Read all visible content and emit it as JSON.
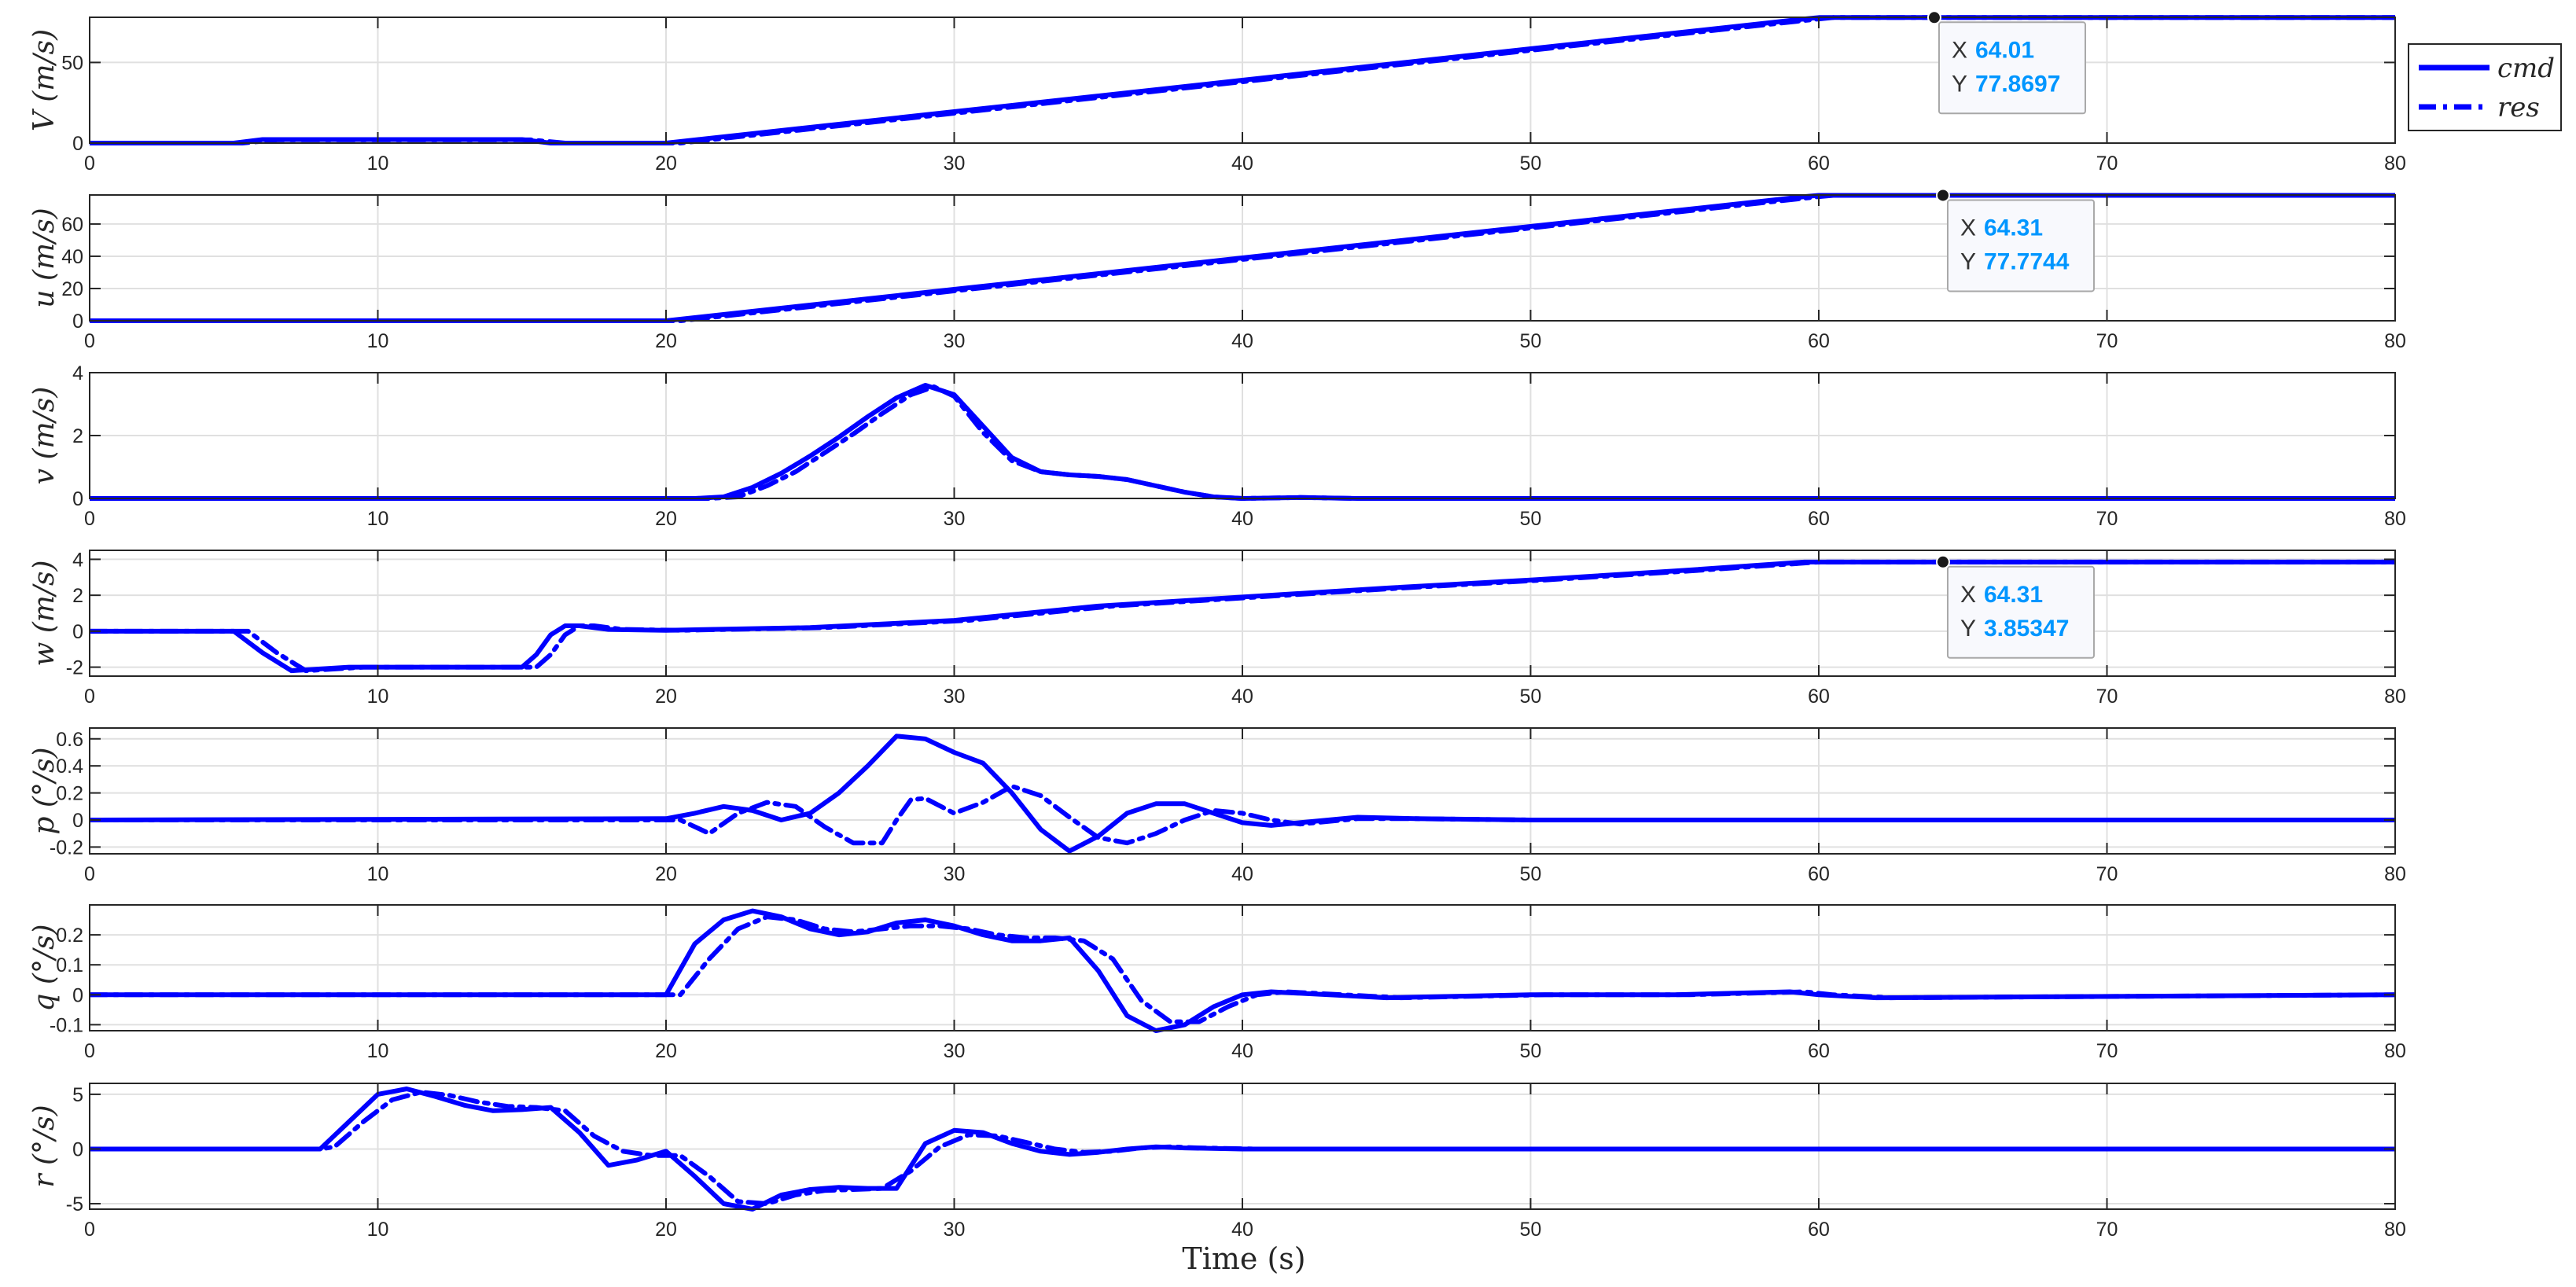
{
  "colors": {
    "series": "#0000ff",
    "axis": "#262626",
    "grid": "#e0e0e0",
    "tip_value": "#0096ff"
  },
  "chart_data": {
    "type": "line",
    "xlabel": "Time (s)",
    "xlim": [
      0,
      80
    ],
    "xticks": [
      0,
      10,
      20,
      30,
      40,
      50,
      60,
      70,
      80
    ],
    "legend": {
      "placement": "top-right",
      "entries": [
        {
          "name": "cmd",
          "style": "solid"
        },
        {
          "name": "res",
          "style": "dash-dot"
        }
      ]
    },
    "grid": true,
    "panels": [
      {
        "ylabel": "V (m/s)",
        "ylim": [
          0,
          78
        ],
        "yticks": [
          0,
          50
        ],
        "series": [
          {
            "name": "cmd",
            "x": [
              0,
              5,
              6,
              15,
              16,
              20,
              30,
              40,
              50,
              59.5,
              60,
              80
            ],
            "y": [
              0,
              0,
              2.2,
              2.2,
              0,
              0,
              19.5,
              39.0,
              58.5,
              77.0,
              77.87,
              77.87
            ]
          },
          {
            "name": "res",
            "x": [
              0,
              5.3,
              6.5,
              15.3,
              16.5,
              20.5,
              30.5,
              40.5,
              50.5,
              60,
              60.5,
              80
            ],
            "y": [
              0,
              0,
              2.0,
              2.0,
              0,
              0,
              19.5,
              39.0,
              58.5,
              77.0,
              77.87,
              77.87
            ]
          }
        ],
        "datatip": {
          "x": 64.01,
          "y": 77.8697,
          "x_label": "X",
          "y_label": "Y",
          "x_text": "64.01",
          "y_text": "77.8697"
        }
      },
      {
        "ylabel": "u (m/s)",
        "ylim": [
          0,
          78
        ],
        "yticks": [
          0,
          20,
          40,
          60
        ],
        "series": [
          {
            "name": "cmd",
            "x": [
              0,
              20,
              30,
              40,
              50,
              59.5,
              60,
              80
            ],
            "y": [
              0,
              0,
              19.5,
              39.0,
              58.5,
              77.0,
              77.77,
              77.77
            ]
          },
          {
            "name": "res",
            "x": [
              0,
              20.5,
              30.5,
              40.5,
              50.5,
              60,
              60.5,
              80
            ],
            "y": [
              0,
              0,
              19.5,
              39.0,
              58.5,
              77.0,
              77.77,
              77.77
            ]
          }
        ],
        "datatip": {
          "x": 64.31,
          "y": 77.7744,
          "x_label": "X",
          "y_label": "Y",
          "x_text": "64.31",
          "y_text": "77.7744"
        }
      },
      {
        "ylabel": "v (m/s)",
        "ylim": [
          0,
          4
        ],
        "yticks": [
          0,
          2,
          4
        ],
        "series": [
          {
            "name": "cmd",
            "x": [
              0,
              21,
              22,
              23,
              24,
              25,
              26,
              27,
              28,
              29,
              30,
              31,
              32,
              33,
              34,
              35,
              36,
              37,
              38,
              39,
              40,
              42,
              44,
              80
            ],
            "y": [
              0,
              0,
              0.05,
              0.35,
              0.8,
              1.35,
              1.95,
              2.6,
              3.2,
              3.6,
              3.3,
              2.3,
              1.3,
              0.85,
              0.75,
              0.7,
              0.6,
              0.4,
              0.2,
              0.05,
              0,
              0.03,
              0,
              0
            ]
          },
          {
            "name": "res",
            "x": [
              0,
              21.5,
              22.5,
              23.5,
              24.5,
              25.5,
              26.5,
              27.5,
              28.5,
              29.3,
              30,
              31,
              32,
              33,
              34,
              35,
              36,
              37,
              38,
              39,
              40,
              42,
              44,
              80
            ],
            "y": [
              0,
              0,
              0.05,
              0.4,
              0.85,
              1.45,
              2.05,
              2.7,
              3.3,
              3.55,
              3.25,
              2.1,
              1.2,
              0.85,
              0.75,
              0.7,
              0.6,
              0.4,
              0.2,
              0.05,
              0,
              0.03,
              0,
              0
            ]
          }
        ]
      },
      {
        "ylabel": "w (m/s)",
        "ylim": [
          -2.5,
          4.5
        ],
        "yticks": [
          -2,
          0,
          2,
          4
        ],
        "series": [
          {
            "name": "cmd",
            "x": [
              0,
              5,
              6,
              7,
              8,
              9,
              12,
              15,
              15.5,
              16,
              16.5,
              17,
              18,
              20,
              25,
              30,
              35,
              40,
              45,
              50,
              55,
              59.5,
              60,
              80
            ],
            "y": [
              0,
              0,
              -1.2,
              -2.2,
              -2.1,
              -2.0,
              -2.0,
              -2.0,
              -1.3,
              -0.2,
              0.3,
              0.3,
              0.1,
              0.05,
              0.2,
              0.6,
              1.4,
              1.9,
              2.4,
              2.85,
              3.35,
              3.85,
              3.85,
              3.85
            ]
          },
          {
            "name": "res",
            "x": [
              0,
              5.5,
              6.5,
              7.5,
              8.5,
              9.5,
              12,
              15.5,
              16,
              16.5,
              17,
              17.5,
              18.5,
              20.5,
              25.5,
              30.5,
              35.5,
              40.5,
              45.5,
              50.5,
              55.5,
              60,
              60.5,
              80
            ],
            "y": [
              0,
              0,
              -1.2,
              -2.2,
              -2.1,
              -2.0,
              -2.0,
              -2.0,
              -1.3,
              -0.2,
              0.3,
              0.3,
              0.1,
              0.05,
              0.2,
              0.6,
              1.4,
              1.9,
              2.4,
              2.85,
              3.35,
              3.85,
              3.85,
              3.85
            ]
          }
        ],
        "datatip": {
          "x": 64.31,
          "y": 3.85347,
          "x_label": "X",
          "y_label": "Y",
          "x_text": "64.31",
          "y_text": "3.85347"
        }
      },
      {
        "ylabel": "p (°/s)",
        "ylim": [
          -0.25,
          0.68
        ],
        "yticks": [
          -0.2,
          0,
          0.2,
          0.4,
          0.6
        ],
        "series": [
          {
            "name": "cmd",
            "x": [
              0,
              20,
              21,
              22,
              23,
              24,
              25,
              26,
              27,
              28,
              29,
              30,
              31,
              32,
              33,
              34,
              35,
              36,
              37,
              38,
              39,
              40,
              41,
              42,
              44,
              46,
              50,
              80
            ],
            "y": [
              0,
              0.01,
              0.05,
              0.1,
              0.07,
              0.0,
              0.05,
              0.2,
              0.4,
              0.62,
              0.6,
              0.5,
              0.42,
              0.2,
              -0.07,
              -0.23,
              -0.12,
              0.05,
              0.12,
              0.12,
              0.05,
              -0.02,
              -0.04,
              -0.02,
              0.02,
              0.01,
              0,
              0
            ]
          },
          {
            "name": "res",
            "x": [
              0,
              20.5,
              21.5,
              22.5,
              23.5,
              24.5,
              25.5,
              26.5,
              27.5,
              28,
              28.5,
              29,
              30,
              31,
              32,
              33,
              34,
              35,
              36,
              37,
              38,
              39,
              40,
              41,
              42,
              44,
              46,
              50,
              80
            ],
            "y": [
              0,
              0,
              -0.1,
              0.05,
              0.13,
              0.1,
              -0.05,
              -0.17,
              -0.17,
              0,
              0.15,
              0.16,
              0.05,
              0.13,
              0.25,
              0.18,
              0.02,
              -0.13,
              -0.17,
              -0.1,
              0.0,
              0.07,
              0.05,
              0.0,
              -0.03,
              0.01,
              0.01,
              0,
              0
            ]
          }
        ]
      },
      {
        "ylabel": "q (°/s)",
        "ylim": [
          -0.12,
          0.3
        ],
        "yticks": [
          -0.1,
          0,
          0.1,
          0.2
        ],
        "series": [
          {
            "name": "cmd",
            "x": [
              0,
              20,
              21,
              22,
              23,
              24,
              25,
              26,
              27,
              28,
              29,
              30,
              31,
              32,
              33,
              34,
              35,
              36,
              37,
              38,
              39,
              40,
              41,
              43,
              45,
              50,
              55,
              59,
              60,
              62,
              80
            ],
            "y": [
              0,
              0,
              0.17,
              0.25,
              0.28,
              0.26,
              0.22,
              0.2,
              0.21,
              0.24,
              0.25,
              0.23,
              0.2,
              0.18,
              0.18,
              0.19,
              0.08,
              -0.07,
              -0.12,
              -0.1,
              -0.04,
              0.0,
              0.01,
              0.0,
              -0.01,
              0,
              0,
              0.01,
              0.0,
              -0.01,
              0
            ]
          },
          {
            "name": "res",
            "x": [
              0,
              20.5,
              21.5,
              22.5,
              23.5,
              24.5,
              25.5,
              26.5,
              27.5,
              28.5,
              29.5,
              30.5,
              31.5,
              32.5,
              33.5,
              34.5,
              35.5,
              36.5,
              37.5,
              38.5,
              39.5,
              40.5,
              41.5,
              43.5,
              45.5,
              50.5,
              55.5,
              59.5,
              60.5,
              62.5,
              80
            ],
            "y": [
              0,
              0,
              0.12,
              0.22,
              0.26,
              0.25,
              0.22,
              0.21,
              0.22,
              0.23,
              0.23,
              0.22,
              0.2,
              0.19,
              0.19,
              0.18,
              0.12,
              -0.02,
              -0.09,
              -0.09,
              -0.04,
              0.0,
              0.01,
              0.0,
              -0.01,
              0,
              0,
              0.01,
              0.0,
              -0.01,
              0
            ]
          }
        ]
      },
      {
        "ylabel": "r (°/s)",
        "ylim": [
          -5.5,
          6
        ],
        "yticks": [
          -5,
          0,
          5
        ],
        "series": [
          {
            "name": "cmd",
            "x": [
              0,
              8,
              9,
              10,
              11,
              12,
              13,
              14,
              15,
              16,
              17,
              18,
              19,
              20,
              21,
              22,
              23,
              24,
              25,
              26,
              27,
              28,
              29,
              30,
              31,
              32,
              33,
              34,
              35,
              36,
              37,
              38,
              40,
              42,
              80
            ],
            "y": [
              0,
              0,
              2.5,
              5.0,
              5.5,
              4.8,
              4.0,
              3.5,
              3.6,
              3.8,
              1.5,
              -1.5,
              -1.0,
              -0.2,
              -2.5,
              -5.0,
              -5.5,
              -4.2,
              -3.7,
              -3.5,
              -3.6,
              -3.6,
              0.5,
              1.7,
              1.5,
              0.5,
              -0.2,
              -0.5,
              -0.3,
              0.0,
              0.2,
              0.1,
              0,
              0,
              0
            ]
          },
          {
            "name": "res",
            "x": [
              0,
              8,
              8.5,
              9.5,
              10.5,
              11.5,
              12.5,
              13.5,
              14.5,
              15.5,
              16.5,
              17.5,
              18.5,
              19.5,
              20.5,
              21.5,
              22.5,
              23.5,
              24.5,
              25.5,
              26.5,
              27.5,
              28.5,
              29.5,
              30.5,
              31.5,
              32.5,
              33.5,
              34.5,
              35.5,
              36.5,
              37.5,
              38.5,
              40.5,
              42.5,
              80
            ],
            "y": [
              0,
              0,
              0.2,
              2.5,
              4.5,
              5.2,
              4.9,
              4.3,
              3.9,
              3.8,
              3.5,
              1.2,
              -0.2,
              -0.6,
              -0.6,
              -2.5,
              -4.8,
              -5.0,
              -4.2,
              -3.8,
              -3.7,
              -3.6,
              -2.0,
              0.2,
              1.3,
              1.2,
              0.6,
              0.0,
              -0.3,
              -0.2,
              0.1,
              0.2,
              0.1,
              0,
              0,
              0
            ]
          }
        ]
      }
    ]
  }
}
